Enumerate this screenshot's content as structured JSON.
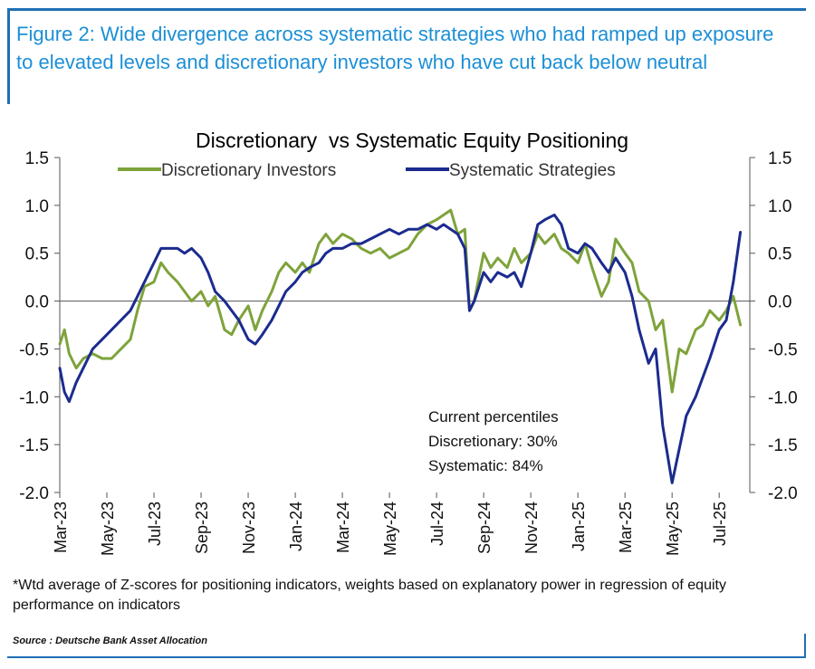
{
  "figure_title": "Figure 2: Wide divergence across systematic strategies who had ramped up exposure to elevated levels and discretionary investors who have cut back below neutral",
  "footnote": "*Wtd average of Z-scores for positioning indicators, weights based on explanatory power in regression of equity performance on indicators",
  "source": "Source : Deutsche Bank Asset Allocation",
  "colors": {
    "frame": "#1f6fb5",
    "title": "#1c8fd6",
    "discretionary": "#7ea33b",
    "systematic": "#1b2b8f"
  },
  "chart_data": {
    "type": "line",
    "title": "Discretionary  vs Systematic Equity Positioning",
    "xlabel": "",
    "ylabel": "",
    "ylim": [
      -2.0,
      1.5
    ],
    "y_ticks": [
      "1.5",
      "1.0",
      "0.5",
      "0.0",
      "-0.5",
      "-1.0",
      "-1.5",
      "-2.0"
    ],
    "x_tick_labels": [
      "Mar-23",
      "May-23",
      "Jul-23",
      "Sep-23",
      "Nov-23",
      "Jan-24",
      "Mar-24",
      "May-24",
      "Jul-24",
      "Sep-24",
      "Nov-24",
      "Jan-25",
      "Mar-25",
      "May-25",
      "Jul-25"
    ],
    "x_months": [
      0,
      2,
      4,
      6,
      8,
      10,
      12,
      14,
      16,
      18,
      20,
      22,
      24,
      26,
      28
    ],
    "xlim": [
      0,
      29.3
    ],
    "annotation": [
      "Current percentiles",
      "Discretionary: 30%",
      "Systematic: 84%"
    ],
    "series": [
      {
        "name": "Discretionary Investors",
        "x": [
          0,
          0.2,
          0.4,
          0.7,
          1.0,
          1.4,
          1.8,
          2.2,
          2.6,
          3.0,
          3.3,
          3.6,
          4.0,
          4.3,
          4.6,
          5.0,
          5.3,
          5.6,
          6.0,
          6.3,
          6.6,
          7.0,
          7.3,
          7.6,
          8.0,
          8.3,
          8.6,
          9.0,
          9.3,
          9.6,
          10.0,
          10.3,
          10.6,
          11.0,
          11.3,
          11.6,
          12.0,
          12.4,
          12.8,
          13.2,
          13.6,
          14.0,
          14.4,
          14.8,
          15.2,
          15.6,
          16.0,
          16.3,
          16.6,
          16.9,
          17.2,
          17.4,
          17.6,
          18.0,
          18.3,
          18.6,
          19.0,
          19.3,
          19.6,
          20.0,
          20.3,
          20.6,
          21.0,
          21.3,
          21.6,
          22.0,
          22.3,
          22.6,
          23.0,
          23.3,
          23.6,
          24.0,
          24.3,
          24.6,
          25.0,
          25.3,
          25.6,
          26.0,
          26.3,
          26.6,
          27.0,
          27.3,
          27.6,
          28.0,
          28.3,
          28.6,
          28.9
        ],
        "values": [
          -0.45,
          -0.3,
          -0.55,
          -0.7,
          -0.6,
          -0.55,
          -0.6,
          -0.6,
          -0.5,
          -0.4,
          -0.1,
          0.15,
          0.2,
          0.4,
          0.3,
          0.2,
          0.1,
          0.0,
          0.1,
          -0.05,
          0.05,
          -0.3,
          -0.35,
          -0.2,
          -0.05,
          -0.3,
          -0.1,
          0.1,
          0.3,
          0.4,
          0.3,
          0.4,
          0.3,
          0.6,
          0.7,
          0.6,
          0.7,
          0.65,
          0.55,
          0.5,
          0.55,
          0.45,
          0.5,
          0.55,
          0.7,
          0.8,
          0.85,
          0.9,
          0.95,
          0.7,
          0.75,
          -0.1,
          0.0,
          0.5,
          0.35,
          0.45,
          0.35,
          0.55,
          0.4,
          0.5,
          0.7,
          0.6,
          0.7,
          0.55,
          0.5,
          0.4,
          0.6,
          0.35,
          0.05,
          0.2,
          0.65,
          0.5,
          0.4,
          0.1,
          0.0,
          -0.3,
          -0.2,
          -0.95,
          -0.5,
          -0.55,
          -0.3,
          -0.25,
          -0.1,
          -0.2,
          -0.1,
          0.05,
          -0.25
        ]
      },
      {
        "name": "Systematic Strategies",
        "x": [
          0,
          0.2,
          0.4,
          0.7,
          1.0,
          1.4,
          1.8,
          2.2,
          2.6,
          3.0,
          3.3,
          3.6,
          4.0,
          4.3,
          4.6,
          5.0,
          5.3,
          5.6,
          6.0,
          6.3,
          6.6,
          7.0,
          7.3,
          7.6,
          8.0,
          8.3,
          8.6,
          9.0,
          9.3,
          9.6,
          10.0,
          10.3,
          10.6,
          11.0,
          11.3,
          11.6,
          12.0,
          12.4,
          12.8,
          13.2,
          13.6,
          14.0,
          14.4,
          14.8,
          15.2,
          15.6,
          16.0,
          16.3,
          16.6,
          16.9,
          17.2,
          17.4,
          17.6,
          18.0,
          18.3,
          18.6,
          19.0,
          19.3,
          19.6,
          20.0,
          20.3,
          20.6,
          21.0,
          21.3,
          21.6,
          22.0,
          22.3,
          22.6,
          23.0,
          23.3,
          23.6,
          24.0,
          24.3,
          24.6,
          25.0,
          25.3,
          25.6,
          26.0,
          26.3,
          26.6,
          27.0,
          27.3,
          27.6,
          28.0,
          28.3,
          28.6,
          28.9
        ],
        "values": [
          -0.7,
          -0.95,
          -1.05,
          -0.85,
          -0.7,
          -0.5,
          -0.4,
          -0.3,
          -0.2,
          -0.1,
          0.05,
          0.2,
          0.4,
          0.55,
          0.55,
          0.55,
          0.5,
          0.55,
          0.45,
          0.3,
          0.1,
          0.0,
          -0.1,
          -0.2,
          -0.4,
          -0.45,
          -0.35,
          -0.2,
          -0.05,
          0.1,
          0.2,
          0.3,
          0.35,
          0.4,
          0.5,
          0.55,
          0.55,
          0.6,
          0.6,
          0.65,
          0.7,
          0.75,
          0.7,
          0.75,
          0.75,
          0.8,
          0.75,
          0.8,
          0.75,
          0.7,
          0.55,
          -0.1,
          0.0,
          0.3,
          0.2,
          0.3,
          0.25,
          0.3,
          0.15,
          0.5,
          0.8,
          0.85,
          0.9,
          0.8,
          0.55,
          0.5,
          0.6,
          0.55,
          0.4,
          0.3,
          0.45,
          0.3,
          0.05,
          -0.3,
          -0.65,
          -0.5,
          -1.3,
          -1.9,
          -1.55,
          -1.2,
          -1.0,
          -0.8,
          -0.6,
          -0.3,
          -0.2,
          0.2,
          0.72
        ]
      }
    ]
  }
}
